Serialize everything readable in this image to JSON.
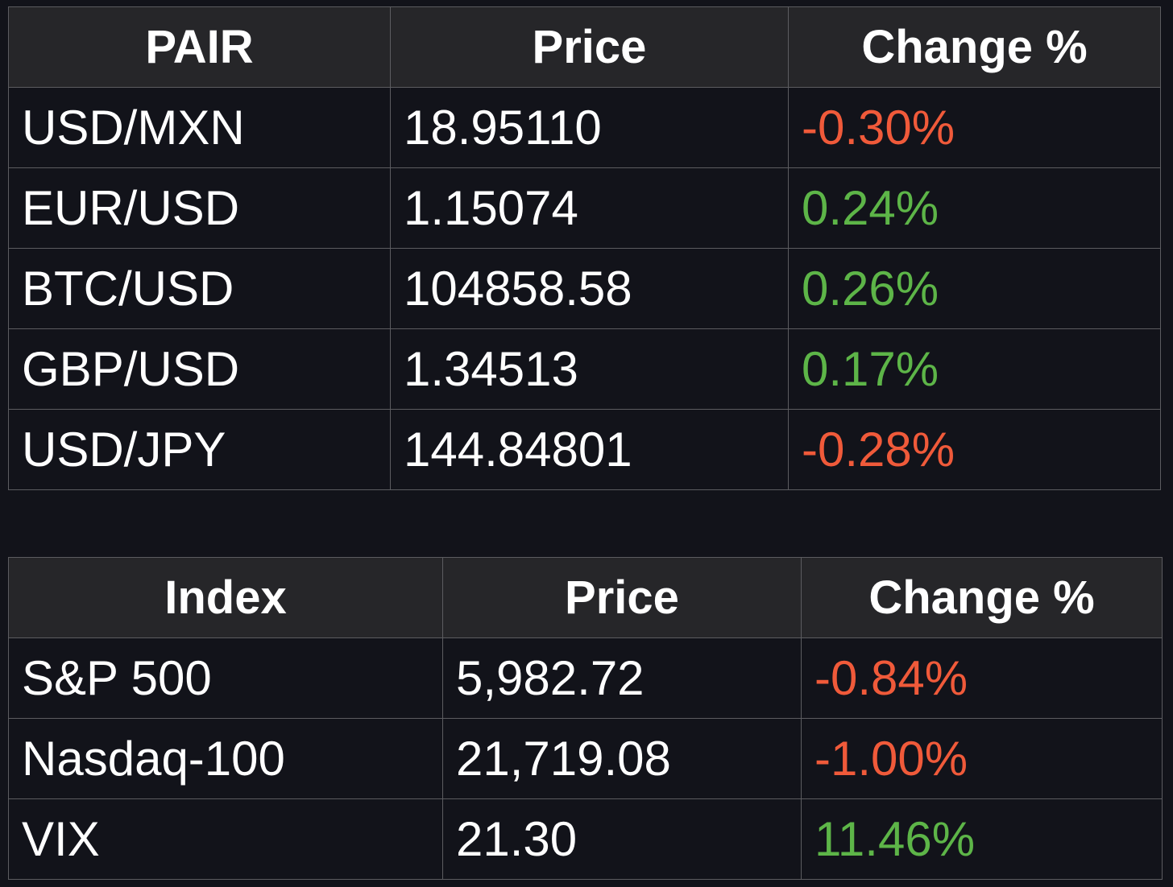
{
  "fx_table": {
    "headers": [
      "PAIR",
      "Price",
      "Change %"
    ],
    "rows": [
      {
        "pair": "USD/MXN",
        "price": "18.95110",
        "change": "-0.30%",
        "direction": "down"
      },
      {
        "pair": "EUR/USD",
        "price": "1.15074",
        "change": "0.24%",
        "direction": "up"
      },
      {
        "pair": "BTC/USD",
        "price": "104858.58",
        "change": "0.26%",
        "direction": "up"
      },
      {
        "pair": "GBP/USD",
        "price": "1.34513",
        "change": "0.17%",
        "direction": "up"
      },
      {
        "pair": "USD/JPY",
        "price": "144.84801",
        "change": "-0.28%",
        "direction": "down"
      }
    ]
  },
  "index_table": {
    "headers": [
      "Index",
      "Price",
      "Change %"
    ],
    "rows": [
      {
        "index": "S&P 500",
        "price": "5,982.72",
        "change": "-0.84%",
        "direction": "down"
      },
      {
        "index": "Nasdaq-100",
        "price": "21,719.08",
        "change": "-1.00%",
        "direction": "down"
      },
      {
        "index": "VIX",
        "price": "21.30",
        "change": "11.46%",
        "direction": "up"
      }
    ]
  },
  "colors": {
    "background": "#12131a",
    "header_background": "#262629",
    "border": "#5c5c60",
    "negative": "#f05a3a",
    "positive": "#5db548"
  }
}
